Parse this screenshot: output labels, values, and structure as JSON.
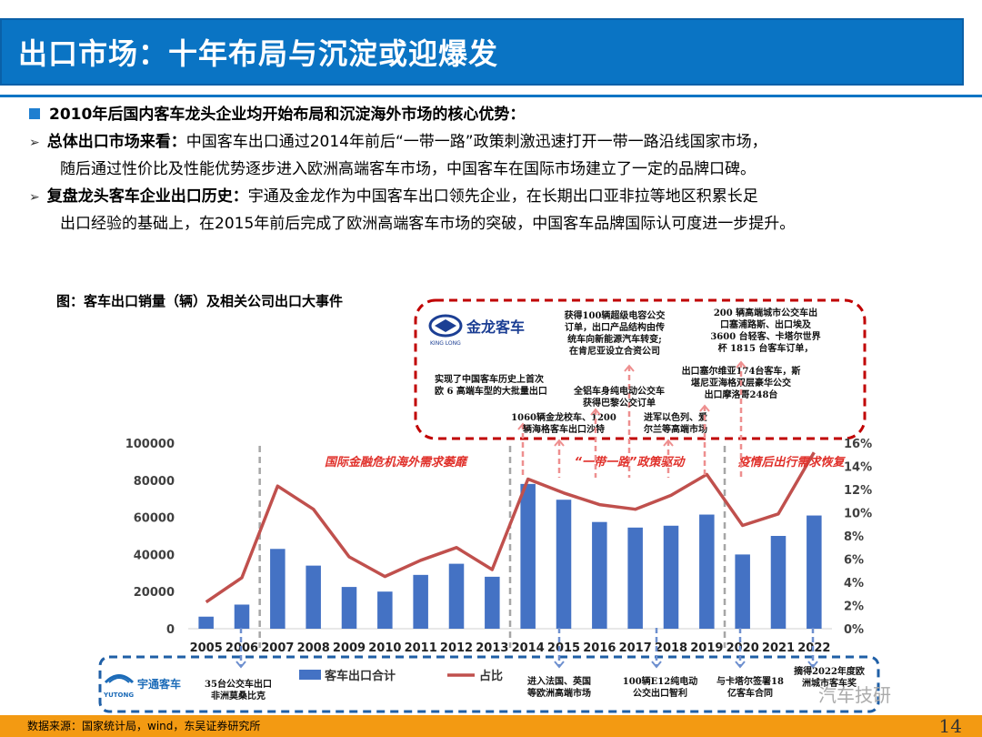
{
  "header": {
    "title": "出口市场：十年布局与沉淀或迎爆发"
  },
  "intro": {
    "heading": "2010年后国内客车龙头企业均开始布局和沉淀海外市场的核心优势：",
    "bullets": [
      {
        "bold": "总体出口市场来看：",
        "line1": "中国客车出口通过2014年前后“一带一路”政策刺激迅速打开一带一路沿线国家市场，",
        "line2": "随后通过性价比及性能优势逐步进入欧洲高端客车市场，中国客车在国际市场建立了一定的品牌口碑。"
      },
      {
        "bold": "复盘龙头客车企业出口历史：",
        "line1": "宇通及金龙作为中国客车出口领先企业，在长期出口亚非拉等地区积累长足",
        "line2": "出口经验的基础上，在2015年前后完成了欧洲高端客车市场的突破，中国客车品牌国际认可度进一步提升。"
      }
    ]
  },
  "figure": {
    "title": "图：客车出口销量（辆）及相关公司出口大事件"
  },
  "brands": {
    "top": "金龙客车",
    "top_sub": "KING LONG",
    "bottom": "宇通客车",
    "bottom_sub": "YUTONG"
  },
  "phases": [
    "国际金融危机海外需求萎靡",
    "“一带一路”政策驱动",
    "疫情后出行需求恢复"
  ],
  "top_events": [
    {
      "lines": [
        "实现了中国客车历史上首次",
        "欧 6 高端车型的大批量出口"
      ]
    },
    {
      "lines": [
        "1060辆金龙校车、1200",
        "辆海格客车出口沙特"
      ]
    },
    {
      "lines": [
        "获得100辆超级电容公交",
        "订单，出口产品结构由传",
        "统车向新能源汽车转变;",
        "在肯尼亚设立合资公司"
      ]
    },
    {
      "lines": [
        "全铝车身纯电动公交车",
        "获得巴黎公交订单"
      ]
    },
    {
      "lines": [
        "进军以色列、爱",
        "尔兰等高端市场"
      ]
    },
    {
      "lines": [
        "出口塞尔维亚174台客车，斯",
        "堪尼亚海格双层豪华公交",
        "出口摩洛哥248台"
      ]
    },
    {
      "lines": [
        "200 辆高端城市公交车出",
        "口塞浦路斯、出口埃及",
        "3600 台轻客、卡塔尔世界",
        "杯 1815 台客车订单，"
      ]
    }
  ],
  "bottom_events": [
    {
      "lines": [
        "35台公交车出口",
        "非洲莫桑比克"
      ]
    },
    {
      "lines": [
        "进入法国、英国",
        "等欧洲高端市场"
      ]
    },
    {
      "lines": [
        "100辆E12纯电动",
        "公交出口智利"
      ]
    },
    {
      "lines": [
        "与卡塔尔签署18",
        "亿客车合同"
      ]
    },
    {
      "lines": [
        "摘得2022年度欧",
        "洲城市客车奖"
      ]
    }
  ],
  "chart_data": {
    "type": "bar+line",
    "categories": [
      "2005",
      "2006",
      "2007",
      "2008",
      "2009",
      "2010",
      "2011",
      "2012",
      "2013",
      "2014",
      "2015",
      "2016",
      "2017",
      "2018",
      "2019",
      "2020",
      "2021",
      "2022"
    ],
    "series": [
      {
        "name": "客车出口合计",
        "type": "bar",
        "axis": "left",
        "color": "#4472c4",
        "values": [
          6500,
          13000,
          43000,
          34000,
          22500,
          20000,
          29000,
          35000,
          28000,
          78000,
          69500,
          57500,
          54500,
          55500,
          61500,
          40000,
          50000,
          61000
        ]
      },
      {
        "name": "占比",
        "type": "line",
        "axis": "right",
        "color": "#c0504d",
        "values": [
          2.3,
          4.4,
          12.3,
          10.3,
          6.2,
          4.5,
          5.9,
          7.0,
          5.1,
          12.9,
          11.7,
          10.7,
          10.3,
          11.5,
          13.3,
          8.9,
          9.9,
          15.2
        ]
      }
    ],
    "y_left": {
      "min": 0,
      "max": 100000,
      "ticks": [
        "0",
        "20000",
        "40000",
        "60000",
        "80000",
        "100000"
      ]
    },
    "y_right": {
      "min": 0,
      "max": 16,
      "ticks": [
        "0%",
        "2%",
        "4%",
        "6%",
        "8%",
        "10%",
        "12%",
        "14%",
        "16%"
      ]
    },
    "legend": [
      "客车出口合计",
      "占比"
    ]
  },
  "footer": {
    "source": "数据来源：国家统计局，wind，东吴证券研究所",
    "page": "14"
  },
  "watermark": "汽车技研",
  "colors": {
    "title_bg": "#0a74c4",
    "bar": "#4472c4",
    "line": "#c0504d",
    "red_box": "#c00000",
    "blue_box": "#1f5fa6",
    "footer": "#f39a12"
  }
}
